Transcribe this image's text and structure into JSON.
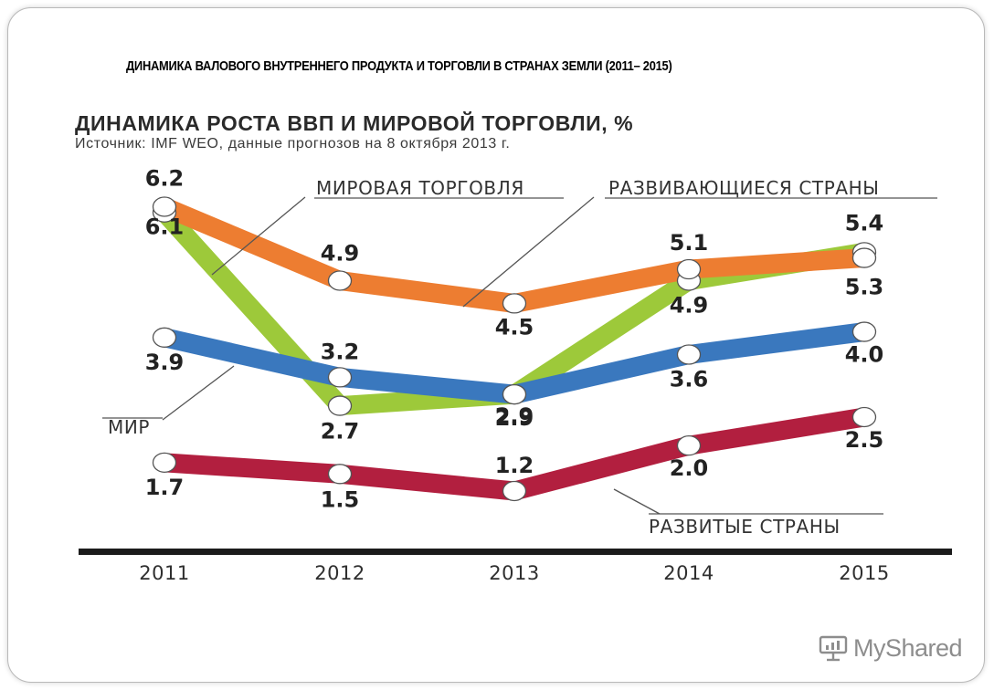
{
  "slide": {
    "title": "ДИНАМИКА ВАЛОВОГО ВНУТРЕННЕГО ПРОДУКТА И ТОРГОВЛИ В СТРАНАХ ЗЕМЛИ (2011– 2015)",
    "watermark": "MyShared"
  },
  "chart_data": {
    "type": "line",
    "title": "ДИНАМИКА РОСТА ВВП И МИРОВОЙ ТОРГОВЛИ, %",
    "subtitle": "Источник: IMF WEO, данные прогнозов на 8 октября 2013 г.",
    "categories": [
      "2011",
      "2012",
      "2013",
      "2014",
      "2015"
    ],
    "ylim": [
      0.8,
      6.6
    ],
    "grid": false,
    "series": [
      {
        "name": "МИРОВАЯ ТОРГОВЛЯ",
        "color": "#9dc93a",
        "values": [
          6.1,
          2.7,
          2.9,
          4.9,
          5.4
        ],
        "value_labels": [
          "6.1",
          "2.7",
          "2.9",
          "4.9",
          "5.4"
        ]
      },
      {
        "name": "РАЗВИВАЮЩИЕСЯ СТРАНЫ",
        "color": "#ed7d31",
        "values": [
          6.2,
          4.9,
          4.5,
          5.1,
          5.3
        ],
        "value_labels": [
          "6.2",
          "4.9",
          "4.5",
          "5.1",
          "5.3"
        ]
      },
      {
        "name": "МИР",
        "color": "#3a78be",
        "values": [
          3.9,
          3.2,
          2.9,
          3.6,
          4.0
        ],
        "value_labels": [
          "3.9",
          "3.2",
          "2.9",
          "3.6",
          "4.0"
        ]
      },
      {
        "name": "РАЗВИТЫЕ СТРАНЫ",
        "color": "#b21f3f",
        "values": [
          1.7,
          1.5,
          1.2,
          2.0,
          2.5
        ],
        "value_labels": [
          "1.7",
          "1.5",
          "1.2",
          "2.0",
          "2.5"
        ]
      }
    ]
  }
}
